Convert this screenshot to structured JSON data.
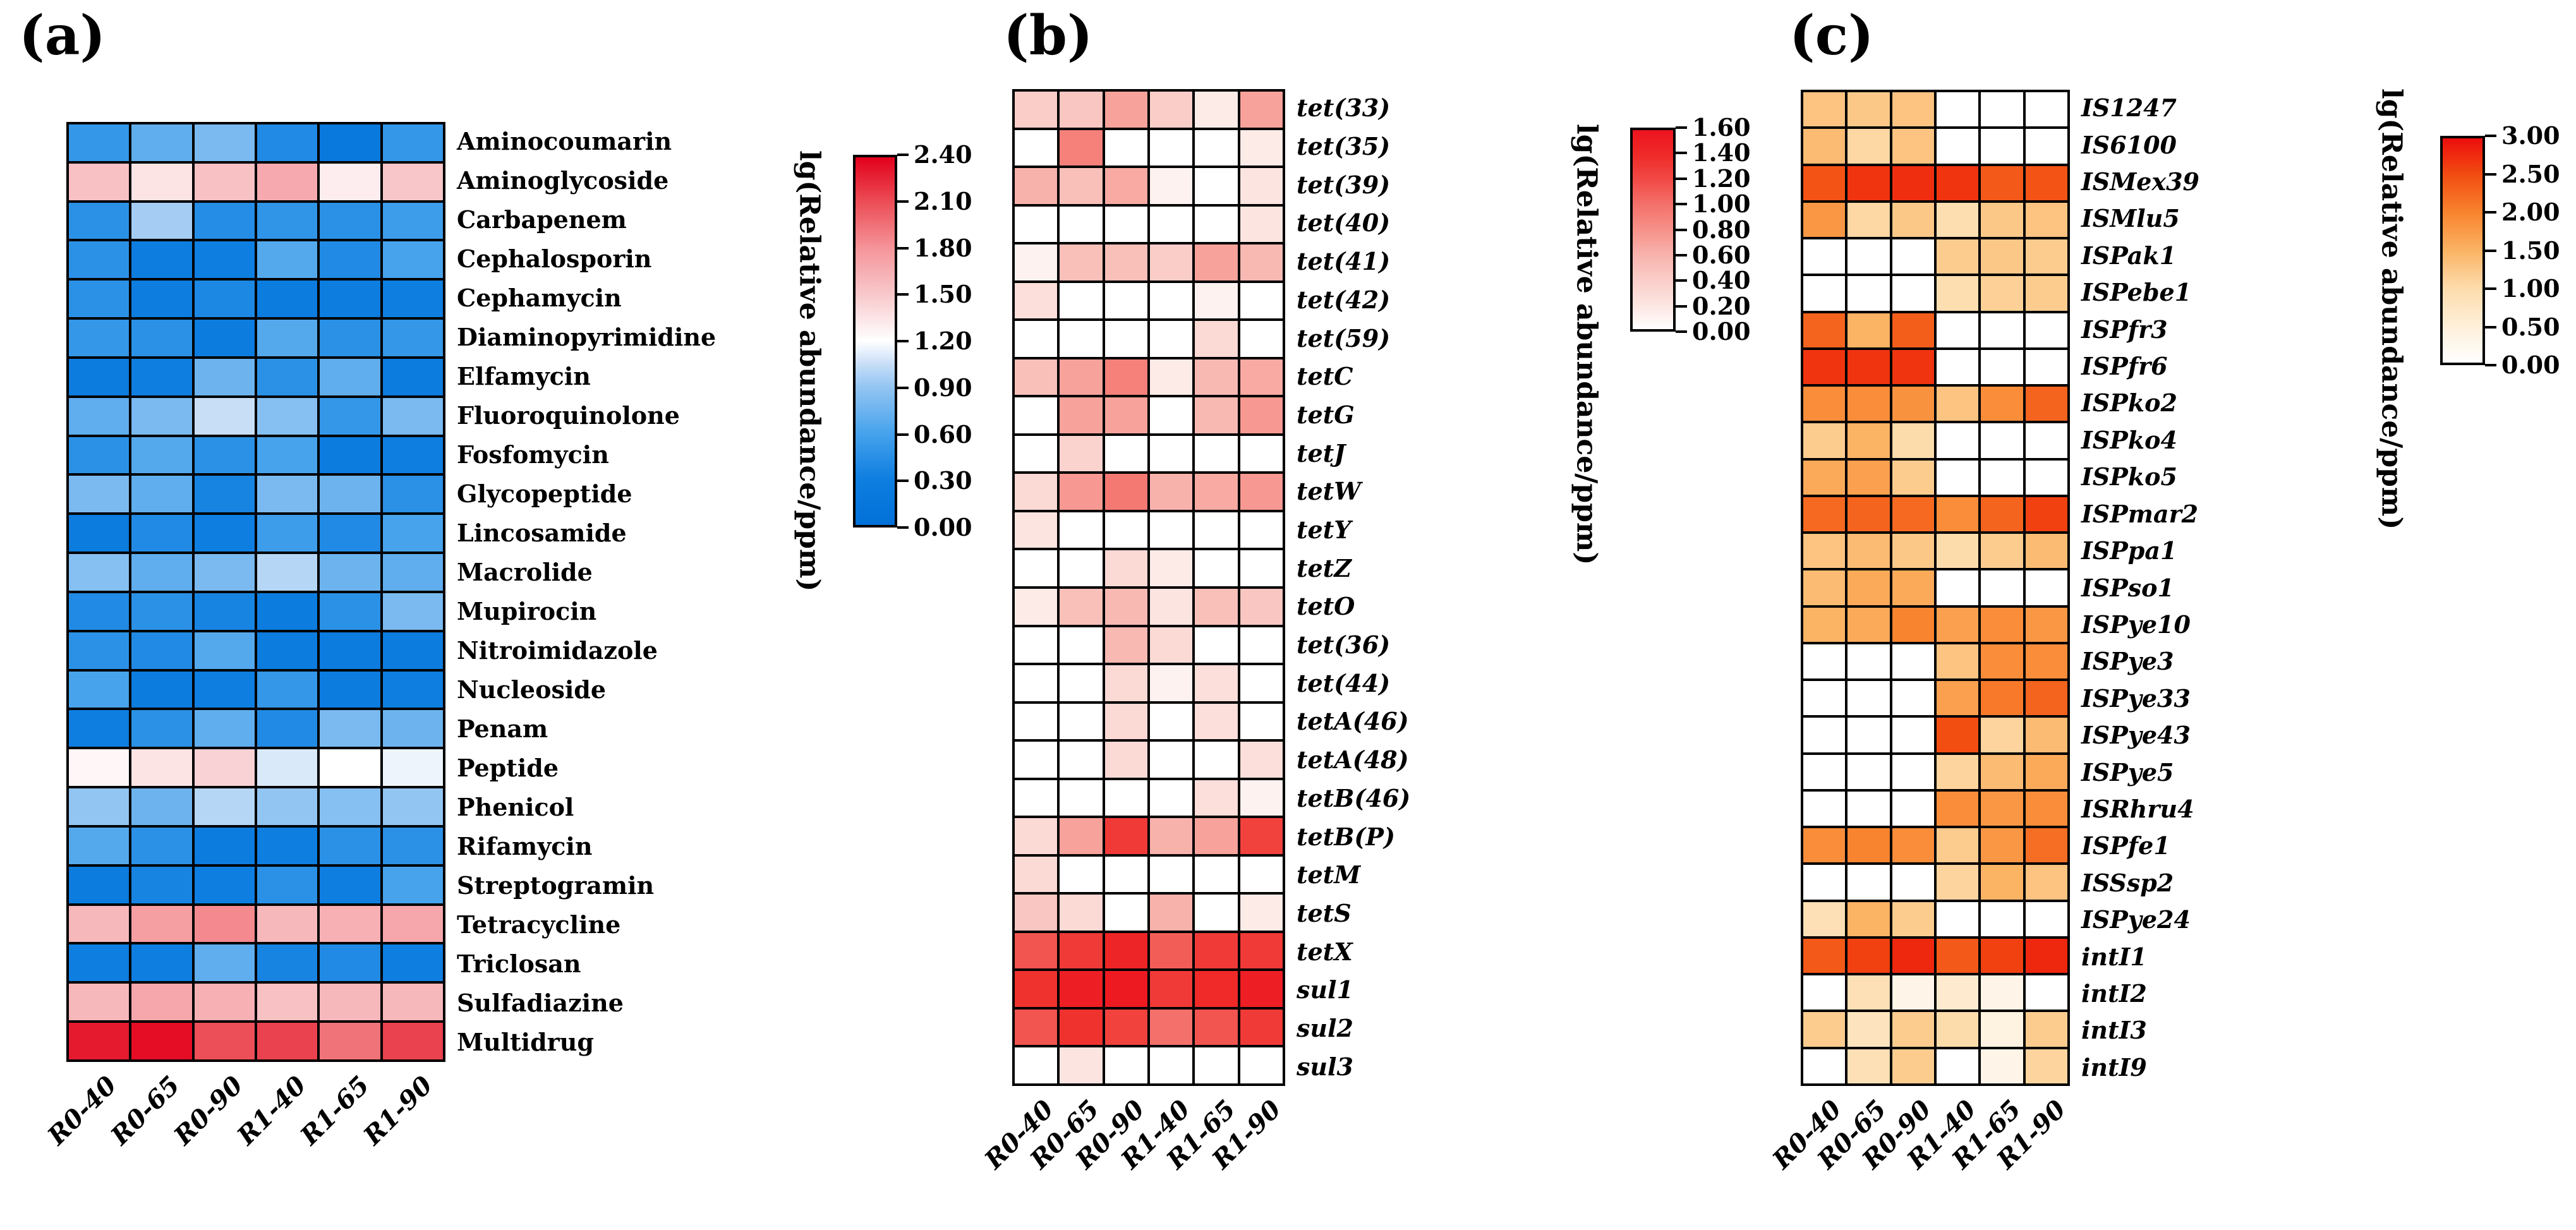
{
  "figure": {
    "background": "#FFFFFF"
  },
  "chart_data": [
    {
      "type": "heatmap",
      "tag": "(a)",
      "categories_x": [
        "R0-40",
        "R0-65",
        "R0-90",
        "R1-40",
        "R1-65",
        "R1-90"
      ],
      "categories_y": [
        "Aminocoumarin",
        "Aminoglycoside",
        "Carbapenem",
        "Cephalosporin",
        "Cephamycin",
        "Diaminopyrimidine",
        "Elfamycin",
        "Fluoroquinolone",
        "Fosfomycin",
        "Glycopeptide",
        "Lincosamide",
        "Macrolide",
        "Mupirocin",
        "Nitroimidazole",
        "Nucleoside",
        "Penam",
        "Peptide",
        "Phenicol",
        "Rifamycin",
        "Streptogramin",
        "Tetracycline",
        "Triclosan",
        "Sulfadiazine",
        "Multidrug"
      ],
      "row_label_style": "normal",
      "values": [
        [
          0.5,
          0.7,
          0.8,
          0.4,
          0.2,
          0.5
        ],
        [
          1.55,
          1.35,
          1.55,
          1.68,
          1.3,
          1.52
        ],
        [
          0.45,
          0.95,
          0.42,
          0.48,
          0.45,
          0.55
        ],
        [
          0.45,
          0.28,
          0.3,
          0.65,
          0.4,
          0.6
        ],
        [
          0.45,
          0.28,
          0.38,
          0.25,
          0.28,
          0.3
        ],
        [
          0.5,
          0.45,
          0.25,
          0.65,
          0.45,
          0.5
        ],
        [
          0.25,
          0.3,
          0.75,
          0.45,
          0.7,
          0.25
        ],
        [
          0.7,
          0.8,
          1.05,
          0.85,
          0.5,
          0.8
        ],
        [
          0.45,
          0.65,
          0.45,
          0.6,
          0.25,
          0.3
        ],
        [
          0.8,
          0.7,
          0.35,
          0.8,
          0.75,
          0.45
        ],
        [
          0.25,
          0.4,
          0.3,
          0.55,
          0.4,
          0.6
        ],
        [
          0.85,
          0.7,
          0.8,
          1.0,
          0.75,
          0.7
        ],
        [
          0.4,
          0.45,
          0.35,
          0.25,
          0.45,
          0.8
        ],
        [
          0.45,
          0.4,
          0.65,
          0.25,
          0.25,
          0.25
        ],
        [
          0.6,
          0.25,
          0.3,
          0.5,
          0.25,
          0.3
        ],
        [
          0.3,
          0.45,
          0.7,
          0.4,
          0.8,
          0.75
        ],
        [
          1.25,
          1.35,
          1.45,
          1.1,
          1.2,
          1.15
        ],
        [
          0.9,
          0.75,
          1.0,
          0.9,
          0.85,
          0.9
        ],
        [
          0.65,
          0.45,
          0.25,
          0.3,
          0.45,
          0.45
        ],
        [
          0.25,
          0.35,
          0.3,
          0.45,
          0.3,
          0.6
        ],
        [
          1.6,
          1.75,
          1.85,
          1.6,
          1.65,
          1.7
        ],
        [
          0.3,
          0.3,
          0.7,
          0.35,
          0.4,
          0.3
        ],
        [
          1.6,
          1.7,
          1.65,
          1.55,
          1.6,
          1.6
        ],
        [
          2.3,
          2.35,
          2.1,
          2.15,
          1.95,
          2.15
        ]
      ],
      "colorbar": {
        "title": "lg(Relative abundance/ppm)",
        "min": 0.0,
        "max": 2.4,
        "tick_labels": [
          "2.40",
          "2.10",
          "1.80",
          "1.50",
          "1.20",
          "0.90",
          "0.60",
          "0.30",
          "0.00"
        ],
        "stops": [
          {
            "v": 0.0,
            "c": "#0270D8"
          },
          {
            "v": 0.3,
            "c": "#0E7EE0"
          },
          {
            "v": 0.6,
            "c": "#47A3EC"
          },
          {
            "v": 0.9,
            "c": "#93C5F2"
          },
          {
            "v": 1.05,
            "c": "#C8DEF7"
          },
          {
            "v": 1.2,
            "c": "#FFFFFF"
          },
          {
            "v": 1.5,
            "c": "#F8C9CC"
          },
          {
            "v": 1.8,
            "c": "#F5969B"
          },
          {
            "v": 2.1,
            "c": "#EC4F58"
          },
          {
            "v": 2.4,
            "c": "#E2001B"
          }
        ]
      }
    },
    {
      "type": "heatmap",
      "tag": "(b)",
      "categories_x": [
        "R0-40",
        "R0-65",
        "R0-90",
        "R1-40",
        "R1-65",
        "R1-90"
      ],
      "categories_y": [
        "tet(33)",
        "tet(35)",
        "tet(39)",
        "tet(40)",
        "tet(41)",
        "tet(42)",
        "tet(59)",
        "tetC",
        "tetG",
        "tetJ",
        "tetW",
        "tetY",
        "tetZ",
        "tetO",
        "tet(36)",
        "tet(44)",
        "tetA(46)",
        "tetA(48)",
        "tetB(46)",
        "tetB(P)",
        "tetM",
        "tetS",
        "tetX",
        "sul1",
        "sul2",
        "sul3"
      ],
      "row_label_style": "italic",
      "values": [
        [
          0.4,
          0.45,
          0.7,
          0.4,
          0.15,
          0.7
        ],
        [
          0.0,
          0.9,
          0.0,
          0.0,
          0.0,
          0.15
        ],
        [
          0.6,
          0.5,
          0.65,
          0.1,
          0.0,
          0.2
        ],
        [
          0.0,
          0.0,
          0.0,
          0.0,
          0.0,
          0.2
        ],
        [
          0.1,
          0.5,
          0.5,
          0.4,
          0.7,
          0.55
        ],
        [
          0.25,
          0.0,
          0.0,
          0.0,
          0.1,
          0.0
        ],
        [
          0.0,
          0.0,
          0.0,
          0.0,
          0.3,
          0.0
        ],
        [
          0.5,
          0.7,
          0.9,
          0.15,
          0.55,
          0.65
        ],
        [
          0.0,
          0.7,
          0.7,
          0.0,
          0.55,
          0.75
        ],
        [
          0.0,
          0.35,
          0.0,
          0.0,
          0.0,
          0.0
        ],
        [
          0.3,
          0.75,
          0.95,
          0.6,
          0.65,
          0.75
        ],
        [
          0.2,
          0.0,
          0.0,
          0.0,
          0.0,
          0.0
        ],
        [
          0.0,
          0.0,
          0.3,
          0.15,
          0.0,
          0.0
        ],
        [
          0.15,
          0.5,
          0.55,
          0.2,
          0.5,
          0.45
        ],
        [
          0.0,
          0.0,
          0.55,
          0.3,
          0.0,
          0.0
        ],
        [
          0.0,
          0.0,
          0.3,
          0.1,
          0.25,
          0.0
        ],
        [
          0.0,
          0.0,
          0.3,
          0.0,
          0.25,
          0.0
        ],
        [
          0.0,
          0.0,
          0.3,
          0.0,
          0.0,
          0.25
        ],
        [
          0.0,
          0.0,
          0.0,
          0.0,
          0.25,
          0.1
        ],
        [
          0.3,
          0.7,
          1.3,
          0.6,
          0.7,
          1.25
        ],
        [
          0.3,
          0.0,
          0.0,
          0.0,
          0.0,
          0.0
        ],
        [
          0.45,
          0.3,
          0.0,
          0.6,
          0.0,
          0.15
        ],
        [
          1.15,
          1.3,
          1.45,
          1.1,
          1.3,
          1.3
        ],
        [
          1.35,
          1.5,
          1.55,
          1.3,
          1.4,
          1.5
        ],
        [
          1.15,
          1.35,
          1.25,
          1.0,
          1.15,
          1.3
        ],
        [
          0.0,
          0.2,
          0.0,
          0.0,
          0.0,
          0.0
        ]
      ],
      "colorbar": {
        "title": "lg(Relative abundance/ppm)",
        "min": 0.0,
        "max": 1.6,
        "tick_labels": [
          "1.60",
          "1.40",
          "1.20",
          "1.00",
          "0.80",
          "0.60",
          "0.40",
          "0.20",
          "0.00"
        ],
        "stops": [
          {
            "v": 0.0,
            "c": "#FFFFFF"
          },
          {
            "v": 0.2,
            "c": "#FCE4E0"
          },
          {
            "v": 0.4,
            "c": "#FACDC8"
          },
          {
            "v": 0.6,
            "c": "#F8B2AC"
          },
          {
            "v": 0.8,
            "c": "#F69189"
          },
          {
            "v": 1.0,
            "c": "#F4716B"
          },
          {
            "v": 1.2,
            "c": "#F14A46"
          },
          {
            "v": 1.4,
            "c": "#EF2A28"
          },
          {
            "v": 1.6,
            "c": "#EC1420"
          }
        ]
      }
    },
    {
      "type": "heatmap",
      "tag": "(c)",
      "categories_x": [
        "R0-40",
        "R0-65",
        "R0-90",
        "R1-40",
        "R1-65",
        "R1-90"
      ],
      "categories_y": [
        "IS1247",
        "IS6100",
        "ISMex39",
        "ISMlu5",
        "ISPak1",
        "ISPebe1",
        "ISPfr3",
        "ISPfr6",
        "ISPko2",
        "ISPko4",
        "ISPko5",
        "ISPmar2",
        "ISPpa1",
        "ISPso1",
        "ISPye10",
        "ISPye3",
        "ISPye33",
        "ISPye43",
        "ISPye5",
        "ISRhru4",
        "ISPfe1",
        "ISSsp2",
        "ISPye24",
        "intI1",
        "intI2",
        "intI3",
        "intI9"
      ],
      "row_label_style": "italic",
      "values": [
        [
          1.3,
          1.25,
          1.3,
          0.0,
          0.0,
          0.0
        ],
        [
          1.4,
          1.05,
          1.3,
          0.0,
          0.0,
          0.0
        ],
        [
          2.45,
          2.7,
          2.75,
          2.7,
          2.4,
          2.45
        ],
        [
          1.8,
          1.05,
          1.25,
          0.95,
          1.25,
          1.3
        ],
        [
          0.0,
          0.0,
          0.0,
          1.2,
          1.25,
          1.2
        ],
        [
          0.0,
          0.0,
          0.0,
          0.95,
          1.15,
          1.2
        ],
        [
          2.3,
          1.5,
          2.35,
          0.0,
          0.0,
          0.0
        ],
        [
          2.7,
          2.7,
          2.7,
          0.0,
          0.0,
          0.0
        ],
        [
          1.9,
          1.9,
          1.85,
          1.3,
          1.9,
          2.3
        ],
        [
          1.2,
          1.5,
          1.0,
          0.0,
          0.0,
          0.0
        ],
        [
          1.6,
          1.7,
          1.2,
          0.0,
          0.0,
          0.0
        ],
        [
          2.25,
          2.3,
          2.25,
          1.9,
          2.3,
          2.6
        ],
        [
          1.3,
          1.4,
          1.25,
          1.0,
          1.2,
          1.4
        ],
        [
          1.4,
          1.6,
          1.6,
          0.0,
          0.0,
          0.0
        ],
        [
          1.5,
          1.6,
          2.0,
          1.7,
          1.9,
          1.8
        ],
        [
          0.0,
          0.0,
          0.0,
          1.3,
          1.9,
          1.9
        ],
        [
          0.0,
          0.0,
          0.0,
          1.7,
          2.1,
          2.3
        ],
        [
          0.0,
          0.0,
          0.0,
          2.5,
          1.1,
          1.4
        ],
        [
          0.0,
          0.0,
          0.0,
          1.1,
          1.4,
          1.6
        ],
        [
          0.0,
          0.0,
          0.0,
          1.9,
          1.8,
          1.9
        ],
        [
          1.9,
          2.0,
          1.9,
          1.2,
          1.8,
          2.2
        ],
        [
          0.0,
          0.0,
          0.0,
          1.1,
          1.5,
          1.3
        ],
        [
          0.9,
          1.5,
          1.2,
          0.0,
          0.0,
          0.0
        ],
        [
          2.4,
          2.6,
          2.8,
          2.4,
          2.6,
          2.8
        ],
        [
          0.0,
          0.9,
          0.3,
          0.6,
          0.3,
          0.0
        ],
        [
          1.2,
          0.8,
          1.2,
          1.0,
          0.4,
          1.2
        ],
        [
          0.0,
          0.9,
          1.2,
          0.0,
          0.3,
          1.1
        ]
      ],
      "colorbar": {
        "title": "lg(Relative abundance/ppm)",
        "min": 0.0,
        "max": 3.0,
        "tick_labels": [
          "3.00",
          "2.50",
          "2.00",
          "1.50",
          "1.00",
          "0.50",
          "0.00"
        ],
        "stops": [
          {
            "v": 0.0,
            "c": "#FFFFFF"
          },
          {
            "v": 0.5,
            "c": "#FEEFD8"
          },
          {
            "v": 1.0,
            "c": "#FDDCAC"
          },
          {
            "v": 1.5,
            "c": "#FBB364"
          },
          {
            "v": 2.0,
            "c": "#F8842F"
          },
          {
            "v": 2.5,
            "c": "#F24E12"
          },
          {
            "v": 3.0,
            "c": "#EC0D0D"
          }
        ]
      }
    }
  ]
}
